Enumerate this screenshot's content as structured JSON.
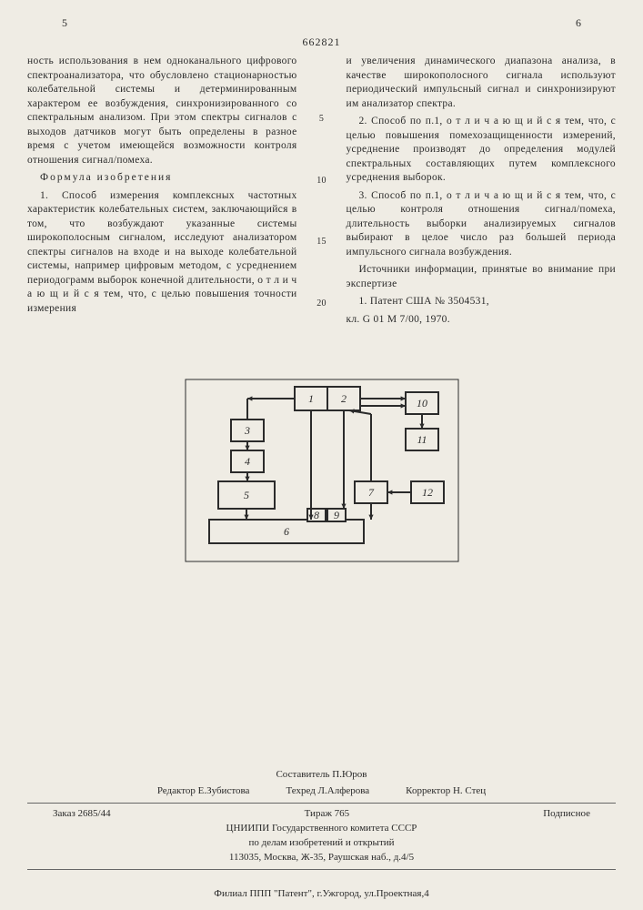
{
  "header": {
    "left_col_num": "5",
    "right_col_num": "6",
    "patent_number": "662821"
  },
  "left_col": {
    "para0": "ность использования в нем одноканального цифрового спектроанализатора, что обусловлено стационарностью колебательной системы и детерминированным характером ее возбуждения, синхронизированного со спектральным анализом. При этом спектры сигналов с выходов датчиков могут быть определены в разное время с учетом имеющейся возможности контроля отношения сигнал/помеха.",
    "formula_head": "Формула изобретения",
    "claim1": "1. Способ измерения комплексных частотных характеристик колебательных систем, заключающийся в том, что возбуждают указанные системы широкополосным сигналом, исследуют анализатором спектры сигналов на входе и на выходе колебательной системы, например цифровым методом, с усреднением периодограмм выборок конечной длительности, о т л и ч а ю щ и й с я тем, что, с целью повышения точности измерения"
  },
  "right_col": {
    "para0": "и увеличения динамического диапазона анализа, в качестве широкополосного сигнала используют периодический импульсный сигнал и синхронизируют им анализатор спектра.",
    "claim2": "2. Способ по п.1, о т л и ч а ю щ и й с я тем, что, с целью повышения помехозащищенности измерений, усреднение производят до определения модулей спектральных составляющих путем комплексного усреднения выборок.",
    "claim3": "3. Способ по п.1, о т л и ч а ю щ и й с я тем, что, с целью контроля отношения сигнал/помеха, длительность выборки анализируемых сигналов выбирают в целое число раз большей периода импульсного сигнала возбуждения.",
    "sources_head": "Источники информации, принятые во внимание при экспертизе",
    "source1a": "1. Патент США № 3504531,",
    "source1b": "кл. G 01 M 7/00, 1970."
  },
  "midnums": {
    "n5": "5",
    "n10": "10",
    "n15": "15",
    "n20": "20"
  },
  "figure": {
    "boxes": {
      "b1": "1",
      "b2": "2",
      "b3": "3",
      "b4": "4",
      "b5": "5",
      "b6": "6",
      "b7": "7",
      "b8": "8",
      "b9": "9",
      "b10": "10",
      "b11": "11",
      "b12": "12"
    },
    "stroke": "#2b2b2b",
    "fill": "#efece4",
    "font_size": 12
  },
  "credits": {
    "composer": "Составитель П.Юров",
    "editor": "Редактор Е.Зубистова",
    "techred": "Техред Л.Алферова",
    "corrector": "Корректор Н. Стец",
    "order": "Заказ 2685/44",
    "tirage": "Тираж 765",
    "subscr": "Подписное",
    "org1": "ЦНИИПИ Государственного комитета СССР",
    "org2": "по делам изобретений и открытий",
    "addr": "113035, Москва, Ж-35, Раушская наб., д.4/5"
  },
  "bottom": "Филиал ППП \"Патент\", г.Ужгород, ул.Проектная,4"
}
